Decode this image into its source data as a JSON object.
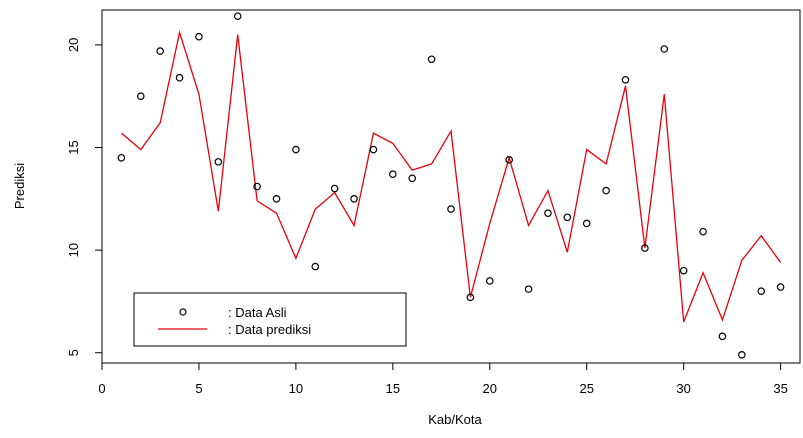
{
  "chart_data": {
    "type": "line",
    "xlabel": "Kab/Kota",
    "ylabel": "Prediksi",
    "xlim": [
      0,
      36
    ],
    "ylim": [
      4.5,
      21.7
    ],
    "x_ticks": [
      0,
      5,
      10,
      15,
      20,
      25,
      30,
      35
    ],
    "y_ticks": [
      5,
      10,
      15,
      20
    ],
    "grid": false,
    "legend_position": "bottom-left",
    "x": [
      1,
      2,
      3,
      4,
      5,
      6,
      7,
      8,
      9,
      10,
      11,
      12,
      13,
      14,
      15,
      16,
      17,
      18,
      19,
      20,
      21,
      22,
      23,
      24,
      25,
      26,
      27,
      28,
      29,
      30,
      31,
      32,
      33,
      34,
      35
    ],
    "series": [
      {
        "name": ": Data Asli",
        "style": "points",
        "color": "#000000",
        "values": [
          14.5,
          17.5,
          19.7,
          18.4,
          20.4,
          14.3,
          21.4,
          13.1,
          12.5,
          14.9,
          9.2,
          13.0,
          12.5,
          14.9,
          13.7,
          13.5,
          19.3,
          12.0,
          7.7,
          8.5,
          14.4,
          8.1,
          11.8,
          11.6,
          11.3,
          12.9,
          18.3,
          10.1,
          19.8,
          9.0,
          10.9,
          5.8,
          4.9,
          8.0,
          8.2
        ]
      },
      {
        "name": ": Data prediksi",
        "style": "line",
        "color": "#e8000b",
        "values": [
          15.7,
          14.9,
          16.2,
          20.6,
          17.6,
          11.9,
          20.5,
          12.4,
          11.8,
          9.6,
          12.0,
          12.8,
          11.2,
          15.7,
          15.2,
          13.9,
          14.2,
          15.8,
          7.7,
          11.3,
          14.5,
          11.2,
          12.9,
          9.9,
          14.9,
          14.2,
          18.0,
          10.1,
          17.6,
          6.5,
          8.9,
          6.6,
          9.5,
          10.7,
          9.4
        ]
      }
    ]
  }
}
